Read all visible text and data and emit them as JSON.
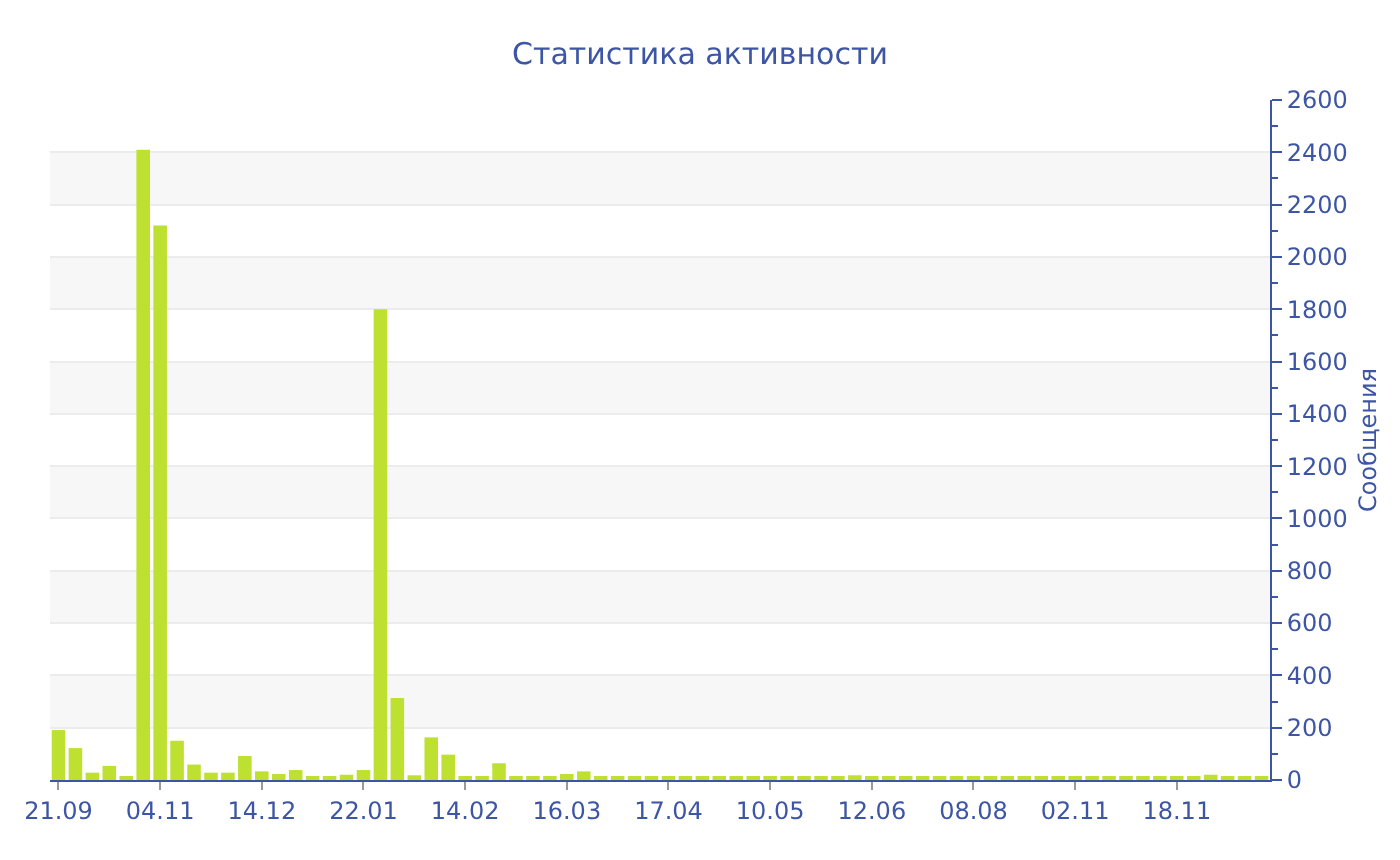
{
  "chart_data": {
    "type": "bar",
    "title": "Статистика активности",
    "ylabel": "Сообщения",
    "categories": [
      "21.09",
      null,
      null,
      null,
      null,
      null,
      "04.11",
      null,
      null,
      null,
      null,
      null,
      "14.12",
      null,
      null,
      null,
      null,
      null,
      "22.01",
      null,
      null,
      null,
      null,
      null,
      "14.02",
      null,
      null,
      null,
      null,
      null,
      "16.03",
      null,
      null,
      null,
      null,
      null,
      "17.04",
      null,
      null,
      null,
      null,
      null,
      "10.05",
      null,
      null,
      null,
      null,
      null,
      "12.06",
      null,
      null,
      null,
      null,
      null,
      "08.08",
      null,
      null,
      null,
      null,
      null,
      "02.11",
      null,
      null,
      null,
      null,
      null,
      "18.11",
      null,
      null,
      null,
      null,
      null
    ],
    "values": [
      191,
      122,
      28,
      54,
      15,
      2410,
      2120,
      150,
      59,
      28,
      28,
      92,
      33,
      23,
      38,
      13,
      13,
      20,
      38,
      1800,
      314,
      18,
      163,
      97,
      15,
      13,
      64,
      10,
      15,
      15,
      23,
      33,
      10,
      10,
      10,
      15,
      10,
      15,
      10,
      10,
      10,
      10,
      10,
      10,
      15,
      10,
      10,
      18,
      10,
      10,
      10,
      10,
      10,
      15,
      10,
      10,
      10,
      10,
      10,
      10,
      10,
      10,
      10,
      10,
      10,
      10,
      10,
      10,
      20,
      10,
      10,
      10
    ],
    "color": "#bde031",
    "ylim": [
      0,
      2600
    ],
    "yticks": [
      0,
      200,
      400,
      600,
      800,
      1000,
      1200,
      1400,
      1600,
      1800,
      2000,
      2200,
      2400,
      2600
    ],
    "grid": "y",
    "legend": false
  }
}
